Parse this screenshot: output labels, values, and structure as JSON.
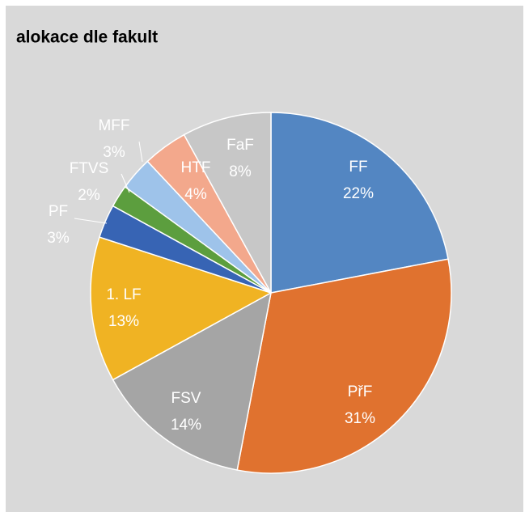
{
  "chart_data": {
    "type": "pie",
    "title": "alokace dle fakult",
    "categories": [
      "FF",
      "PřF",
      "FSV",
      "1. LF",
      "PF",
      "FTVS",
      "MFF",
      "HTF",
      "FaF"
    ],
    "values": [
      22,
      31,
      14,
      13,
      3,
      2,
      3,
      4,
      8
    ],
    "value_labels": [
      "22%",
      "31%",
      "14%",
      "13%",
      "3%",
      "2%",
      "3%",
      "4%",
      "8%"
    ],
    "colors": [
      "#5386c2",
      "#e0722f",
      "#a5a5a5",
      "#f0b323",
      "#3764b4",
      "#5c9e3e",
      "#9ec3ea",
      "#f3a88c",
      "#c7c7c7"
    ]
  }
}
